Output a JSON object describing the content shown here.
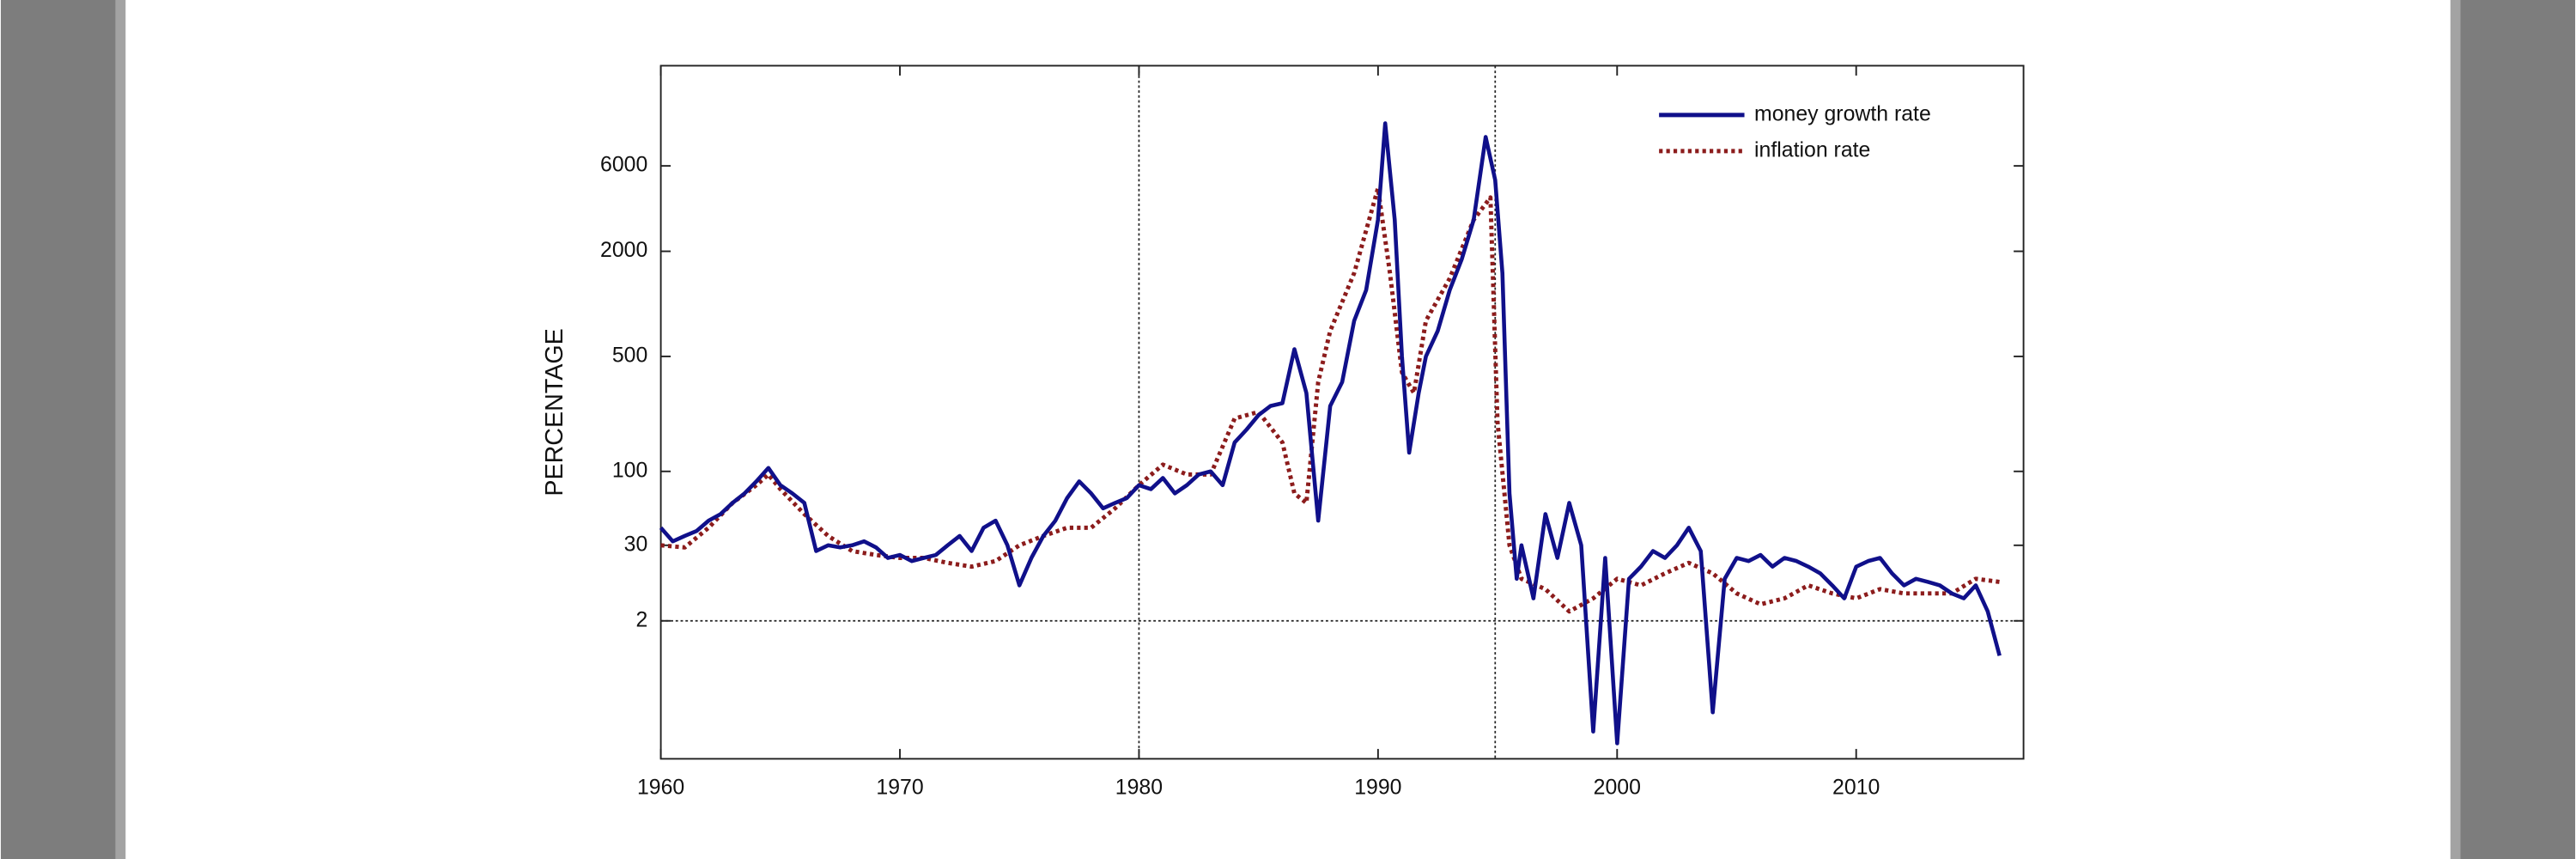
{
  "chart_data": {
    "type": "line",
    "ylabel": "PERCENTAGE",
    "xlim": [
      1960,
      2017
    ],
    "xticks": [
      1960,
      1970,
      1980,
      1990,
      2000,
      2010
    ],
    "ylim": [
      -25,
      20000
    ],
    "yticks": [
      2,
      30,
      100,
      500,
      2000,
      6000
    ],
    "ref_x": [
      1980,
      1994.9
    ],
    "ref_y": [
      2
    ],
    "legend": "top-right",
    "series": [
      {
        "name": "money growth rate",
        "color": "#10108a",
        "style": "solid",
        "x": [
          1960,
          1960.5,
          1961,
          1961.5,
          1962,
          1962.5,
          1963,
          1963.5,
          1964,
          1964.5,
          1965,
          1965.5,
          1966,
          1966.5,
          1967,
          1967.5,
          1968,
          1968.5,
          1969,
          1969.5,
          1970,
          1970.5,
          1971,
          1971.5,
          1972,
          1972.5,
          1973,
          1973.5,
          1974,
          1974.5,
          1975,
          1975.5,
          1976,
          1976.5,
          1977,
          1977.5,
          1978,
          1978.5,
          1979,
          1979.5,
          1980,
          1980.5,
          1981,
          1981.5,
          1982,
          1982.5,
          1983,
          1983.5,
          1984,
          1984.5,
          1985,
          1985.5,
          1986,
          1986.5,
          1987,
          1987.5,
          1988,
          1988.5,
          1989,
          1989.5,
          1990,
          1990.3,
          1990.7,
          1991,
          1991.3,
          1991.7,
          1992,
          1992.5,
          1993,
          1993.5,
          1994,
          1994.5,
          1994.9,
          1995.2,
          1995.5,
          1995.8,
          1996,
          1996.5,
          1997,
          1997.5,
          1998,
          1998.5,
          1999,
          1999.5,
          2000,
          2000.5,
          2001,
          2001.5,
          2002,
          2002.5,
          2003,
          2003.5,
          2004,
          2004.5,
          2005,
          2005.5,
          2006,
          2006.5,
          2007,
          2007.5,
          2008,
          2008.5,
          2009,
          2009.5,
          2010,
          2010.5,
          2011,
          2011.5,
          2012,
          2012.5,
          2013,
          2013.5,
          2014,
          2014.5,
          2015,
          2015.5,
          2016
        ],
        "values": [
          40,
          32,
          35,
          38,
          45,
          50,
          60,
          70,
          85,
          105,
          80,
          70,
          60,
          25,
          30,
          28,
          30,
          32,
          28,
          20,
          22,
          18,
          20,
          22,
          30,
          35,
          25,
          40,
          45,
          30,
          8,
          20,
          35,
          45,
          65,
          85,
          70,
          55,
          60,
          65,
          80,
          75,
          90,
          70,
          80,
          95,
          100,
          80,
          150,
          180,
          220,
          250,
          260,
          550,
          300,
          45,
          250,
          350,
          800,
          1200,
          3000,
          10000,
          3000,
          500,
          130,
          300,
          500,
          700,
          1200,
          1800,
          3000,
          8500,
          5000,
          1500,
          70,
          10,
          30,
          5,
          50,
          20,
          60,
          30,
          -10,
          20,
          -15,
          10,
          15,
          25,
          20,
          30,
          40,
          25,
          -5,
          10,
          20,
          18,
          22,
          15,
          20,
          18,
          15,
          12,
          8,
          5,
          15,
          18,
          20,
          12,
          8,
          10,
          9,
          8,
          6,
          5,
          8,
          3,
          0
        ]
      },
      {
        "name": "inflation rate",
        "color": "#8c1c1c",
        "style": "dotted",
        "x": [
          1960,
          1961,
          1962,
          1963,
          1964,
          1964.5,
          1965,
          1966,
          1967,
          1968,
          1969,
          1970,
          1971,
          1972,
          1973,
          1974,
          1975,
          1976,
          1977,
          1978,
          1979,
          1980,
          1981,
          1982,
          1983,
          1984,
          1985,
          1986,
          1986.5,
          1987,
          1987.5,
          1988,
          1989,
          1990,
          1990.5,
          1991,
          1991.5,
          1992,
          1993,
          1994,
          1994.7,
          1995,
          1995.5,
          1996,
          1997,
          1998,
          1999,
          2000,
          2001,
          2002,
          2003,
          2004,
          2005,
          2006,
          2007,
          2008,
          2009,
          2010,
          2011,
          2012,
          2013,
          2014,
          2015,
          2016
        ],
        "values": [
          30,
          28,
          40,
          60,
          80,
          95,
          75,
          50,
          35,
          25,
          22,
          20,
          20,
          17,
          15,
          18,
          30,
          35,
          40,
          40,
          55,
          80,
          110,
          95,
          95,
          210,
          230,
          150,
          70,
          60,
          350,
          700,
          1500,
          4500,
          1500,
          400,
          300,
          800,
          1400,
          3000,
          4000,
          200,
          30,
          10,
          7,
          3,
          5,
          10,
          8,
          12,
          17,
          12,
          6,
          4,
          5,
          8,
          6,
          5,
          7,
          6,
          6,
          6,
          10,
          9
        ]
      }
    ]
  }
}
